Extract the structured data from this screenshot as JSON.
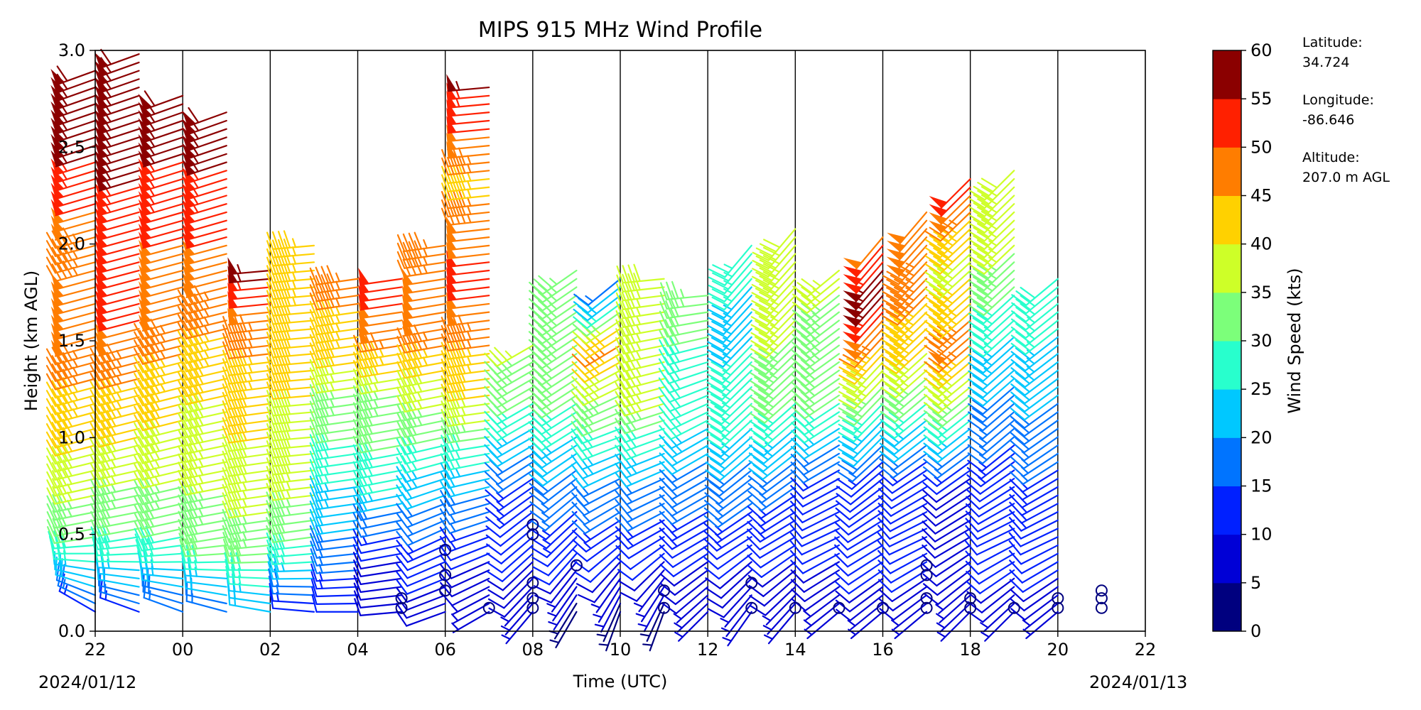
{
  "chart_data": {
    "type": "wind-barb-profile",
    "title": "MIPS 915 MHz Wind Profile",
    "xlabel": "Time (UTC)",
    "ylabel": "Height (km AGL)",
    "ylim": [
      0,
      3.0
    ],
    "xlim_hours": [
      22,
      46
    ],
    "y_ticks": [
      "0.0",
      "0.5",
      "1.0",
      "1.5",
      "2.0",
      "2.5",
      "3.0"
    ],
    "x_ticks": [
      "22",
      "00",
      "02",
      "04",
      "06",
      "08",
      "10",
      "12",
      "14",
      "16",
      "18",
      "20",
      "22"
    ],
    "date_start": "2024/01/12",
    "date_end": "2024/01/13",
    "grid": "vertical lines every 2 hours",
    "colorbar": {
      "label": "Wind Speed (kts)",
      "ticks": [
        "0",
        "5",
        "10",
        "15",
        "20",
        "25",
        "30",
        "35",
        "40",
        "45",
        "50",
        "55",
        "60"
      ],
      "colors": [
        "#00007f",
        "#0000d6",
        "#0020ff",
        "#0074ff",
        "#00c8ff",
        "#28ffcd",
        "#7cff7a",
        "#ceff28",
        "#ffd100",
        "#ff7d00",
        "#ff2000",
        "#8b0000"
      ]
    },
    "station": {
      "lat_label": "Latitude:",
      "lat": "34.724",
      "lon_label": "Longitude:",
      "lon": "-86.646",
      "alt_label": "Altitude:",
      "alt": "207.0 m AGL"
    },
    "profiles": [
      {
        "t": 22.0,
        "top": 2.9,
        "spd": [
          [
            0.1,
            14
          ],
          [
            0.4,
            28
          ],
          [
            0.8,
            38
          ],
          [
            1.2,
            44
          ],
          [
            1.6,
            50
          ],
          [
            2.0,
            46
          ],
          [
            2.3,
            52
          ],
          [
            2.6,
            58
          ],
          [
            2.9,
            60
          ]
        ],
        "dir": [
          [
            0.1,
            300
          ],
          [
            0.5,
            260
          ],
          [
            1.0,
            255
          ],
          [
            2.0,
            255
          ],
          [
            2.9,
            250
          ]
        ]
      },
      {
        "t": 23.0,
        "top": 3.0,
        "spd": [
          [
            0.1,
            14
          ],
          [
            0.4,
            28
          ],
          [
            0.8,
            36
          ],
          [
            1.2,
            44
          ],
          [
            1.6,
            50
          ],
          [
            2.0,
            50
          ],
          [
            2.4,
            56
          ],
          [
            2.8,
            60
          ]
        ],
        "dir": [
          [
            0.1,
            290
          ],
          [
            0.5,
            260
          ],
          [
            1.0,
            256
          ],
          [
            2.0,
            255
          ],
          [
            3.0,
            250
          ]
        ]
      },
      {
        "t": 24.0,
        "top": 2.8,
        "spd": [
          [
            0.1,
            16
          ],
          [
            0.4,
            28
          ],
          [
            0.8,
            36
          ],
          [
            1.2,
            42
          ],
          [
            1.6,
            48
          ],
          [
            2.0,
            50
          ],
          [
            2.3,
            54
          ],
          [
            2.8,
            58
          ]
        ],
        "dir": [
          [
            0.1,
            290
          ],
          [
            0.5,
            258
          ],
          [
            1.0,
            256
          ],
          [
            2.0,
            255
          ],
          [
            2.8,
            250
          ]
        ]
      },
      {
        "t": 25.0,
        "top": 2.7,
        "spd": [
          [
            0.1,
            16
          ],
          [
            0.4,
            30
          ],
          [
            0.8,
            36
          ],
          [
            1.2,
            40
          ],
          [
            1.6,
            46
          ],
          [
            2.0,
            50
          ],
          [
            2.3,
            54
          ],
          [
            2.7,
            58
          ]
        ],
        "dir": [
          [
            0.1,
            285
          ],
          [
            0.5,
            260
          ],
          [
            1.0,
            258
          ],
          [
            2.0,
            255
          ],
          [
            2.7,
            250
          ]
        ]
      },
      {
        "t": 26.0,
        "top": 1.9,
        "spd": [
          [
            0.1,
            20
          ],
          [
            0.4,
            32
          ],
          [
            0.8,
            38
          ],
          [
            1.2,
            42
          ],
          [
            1.6,
            48
          ],
          [
            1.9,
            58
          ]
        ],
        "dir": [
          [
            0.1,
            280
          ],
          [
            0.5,
            262
          ],
          [
            1.0,
            262
          ],
          [
            1.9,
            265
          ]
        ]
      },
      {
        "t": 27.0,
        "top": 2.0,
        "spd": [
          [
            0.1,
            10
          ],
          [
            0.4,
            28
          ],
          [
            0.8,
            38
          ],
          [
            1.2,
            40
          ],
          [
            1.6,
            42
          ],
          [
            2.0,
            45
          ]
        ],
        "dir": [
          [
            0.1,
            275
          ],
          [
            0.5,
            262
          ],
          [
            1.0,
            265
          ],
          [
            2.0,
            265
          ]
        ]
      },
      {
        "t": 28.0,
        "top": 1.85,
        "spd": [
          [
            0.1,
            10
          ],
          [
            0.4,
            18
          ],
          [
            0.8,
            26
          ],
          [
            1.2,
            34
          ],
          [
            1.5,
            44
          ],
          [
            1.85,
            46
          ]
        ],
        "dir": [
          [
            0.1,
            270
          ],
          [
            0.5,
            262
          ],
          [
            1.0,
            262
          ],
          [
            1.85,
            262
          ]
        ]
      },
      {
        "t": 29.0,
        "top": 1.85,
        "spd": [
          [
            0.1,
            8
          ],
          [
            0.4,
            10
          ],
          [
            0.8,
            28
          ],
          [
            1.2,
            34
          ],
          [
            1.5,
            48
          ],
          [
            1.85,
            52
          ]
        ],
        "dir": [
          [
            0.1,
            265
          ],
          [
            0.5,
            258
          ],
          [
            1.0,
            260
          ],
          [
            1.85,
            262
          ]
        ]
      },
      {
        "t": 30.0,
        "top": 2.0,
        "spd": [
          [
            0.1,
            8
          ],
          [
            0.4,
            12
          ],
          [
            0.8,
            24
          ],
          [
            1.2,
            36
          ],
          [
            1.6,
            50
          ],
          [
            2.0,
            46
          ]
        ],
        "dir": [
          [
            0.1,
            250
          ],
          [
            0.5,
            245
          ],
          [
            1.0,
            258
          ],
          [
            2.0,
            262
          ]
        ]
      },
      {
        "t": 31.0,
        "top": 2.85,
        "spd": [
          [
            0.1,
            6
          ],
          [
            0.4,
            10
          ],
          [
            0.8,
            22
          ],
          [
            1.2,
            40
          ],
          [
            1.8,
            52
          ],
          [
            2.3,
            44
          ],
          [
            2.85,
            56
          ]
        ],
        "dir": [
          [
            0.1,
            240
          ],
          [
            0.5,
            250
          ],
          [
            1.0,
            262
          ],
          [
            2.85,
            265
          ]
        ]
      },
      {
        "t": 32.0,
        "top": 1.5,
        "spd": [
          [
            0.1,
            6
          ],
          [
            0.4,
            10
          ],
          [
            0.8,
            14
          ],
          [
            1.2,
            30
          ],
          [
            1.5,
            36
          ]
        ],
        "dir": [
          [
            0.1,
            220
          ],
          [
            0.5,
            230
          ],
          [
            1.0,
            240
          ],
          [
            1.5,
            240
          ]
        ]
      },
      {
        "t": 33.0,
        "top": 1.9,
        "spd": [
          [
            0.1,
            4
          ],
          [
            0.4,
            10
          ],
          [
            0.8,
            18
          ],
          [
            1.2,
            30
          ],
          [
            1.6,
            34
          ],
          [
            1.9,
            34
          ]
        ],
        "dir": [
          [
            0.1,
            210
          ],
          [
            0.5,
            225
          ],
          [
            1.0,
            238
          ],
          [
            1.9,
            235
          ]
        ]
      },
      {
        "t": 34.0,
        "top": 1.85,
        "spd": [
          [
            0.1,
            4
          ],
          [
            0.4,
            10
          ],
          [
            0.8,
            20
          ],
          [
            1.2,
            34
          ],
          [
            1.5,
            46
          ],
          [
            1.85,
            14
          ]
        ],
        "dir": [
          [
            0.1,
            200
          ],
          [
            0.5,
            235
          ],
          [
            1.0,
            250
          ],
          [
            1.85,
            230
          ]
        ]
      },
      {
        "t": 35.0,
        "top": 1.85,
        "spd": [
          [
            0.1,
            4
          ],
          [
            0.4,
            10
          ],
          [
            0.8,
            20
          ],
          [
            1.2,
            36
          ],
          [
            1.6,
            36
          ],
          [
            1.85,
            40
          ]
        ],
        "dir": [
          [
            0.1,
            200
          ],
          [
            0.5,
            240
          ],
          [
            1.0,
            250
          ],
          [
            1.85,
            265
          ]
        ]
      },
      {
        "t": 36.0,
        "top": 1.75,
        "spd": [
          [
            0.1,
            6
          ],
          [
            0.4,
            10
          ],
          [
            0.8,
            18
          ],
          [
            1.2,
            28
          ],
          [
            1.5,
            30
          ],
          [
            1.75,
            34
          ]
        ],
        "dir": [
          [
            0.1,
            225
          ],
          [
            0.5,
            240
          ],
          [
            1.0,
            240
          ],
          [
            1.75,
            265
          ]
        ]
      },
      {
        "t": 37.0,
        "top": 2.0,
        "spd": [
          [
            0.1,
            6
          ],
          [
            0.4,
            10
          ],
          [
            0.8,
            18
          ],
          [
            1.2,
            28
          ],
          [
            1.6,
            24
          ],
          [
            2.0,
            26
          ]
        ],
        "dir": [
          [
            0.1,
            215
          ],
          [
            0.5,
            238
          ],
          [
            1.0,
            228
          ],
          [
            2.0,
            220
          ]
        ]
      },
      {
        "t": 38.0,
        "top": 2.1,
        "spd": [
          [
            0.1,
            6
          ],
          [
            0.4,
            10
          ],
          [
            0.8,
            16
          ],
          [
            1.2,
            30
          ],
          [
            1.6,
            36
          ],
          [
            2.1,
            40
          ]
        ],
        "dir": [
          [
            0.1,
            220
          ],
          [
            0.5,
            240
          ],
          [
            1.0,
            230
          ],
          [
            2.1,
            220
          ]
        ]
      },
      {
        "t": 39.0,
        "top": 1.9,
        "spd": [
          [
            0.1,
            6
          ],
          [
            0.4,
            10
          ],
          [
            0.8,
            12
          ],
          [
            1.2,
            30
          ],
          [
            1.6,
            34
          ],
          [
            1.9,
            36
          ]
        ],
        "dir": [
          [
            0.1,
            230
          ],
          [
            0.5,
            245
          ],
          [
            1.0,
            238
          ],
          [
            1.9,
            230
          ]
        ]
      },
      {
        "t": 40.0,
        "top": 2.05,
        "spd": [
          [
            0.1,
            6
          ],
          [
            0.3,
            10
          ],
          [
            0.8,
            10
          ],
          [
            1.2,
            30
          ],
          [
            1.5,
            45
          ],
          [
            1.8,
            58
          ],
          [
            2.05,
            48
          ]
        ],
        "dir": [
          [
            0.1,
            230
          ],
          [
            0.5,
            240
          ],
          [
            1.0,
            225
          ],
          [
            2.05,
            220
          ]
        ]
      },
      {
        "t": 41.0,
        "top": 2.2,
        "spd": [
          [
            0.1,
            6
          ],
          [
            0.3,
            10
          ],
          [
            0.8,
            10
          ],
          [
            1.2,
            30
          ],
          [
            1.5,
            42
          ],
          [
            1.8,
            46
          ],
          [
            2.2,
            50
          ]
        ],
        "dir": [
          [
            0.1,
            230
          ],
          [
            0.5,
            245
          ],
          [
            1.0,
            232
          ],
          [
            2.2,
            220
          ]
        ]
      },
      {
        "t": 42.0,
        "top": 2.35,
        "spd": [
          [
            0.1,
            6
          ],
          [
            0.3,
            8
          ],
          [
            0.8,
            10
          ],
          [
            1.2,
            32
          ],
          [
            1.5,
            48
          ],
          [
            1.9,
            38
          ],
          [
            2.35,
            52
          ]
        ],
        "dir": [
          [
            0.1,
            225
          ],
          [
            0.5,
            240
          ],
          [
            1.0,
            232
          ],
          [
            2.35,
            225
          ]
        ]
      },
      {
        "t": 43.0,
        "top": 2.4,
        "spd": [
          [
            0.1,
            6
          ],
          [
            0.3,
            10
          ],
          [
            0.8,
            12
          ],
          [
            1.2,
            18
          ],
          [
            1.6,
            26
          ],
          [
            2.0,
            36
          ],
          [
            2.4,
            40
          ]
        ],
        "dir": [
          [
            0.1,
            225
          ],
          [
            0.5,
            245
          ],
          [
            1.0,
            230
          ],
          [
            2.4,
            225
          ]
        ]
      },
      {
        "t": 44.0,
        "top": 1.85,
        "spd": [
          [
            0.1,
            6
          ],
          [
            0.3,
            10
          ],
          [
            0.8,
            14
          ],
          [
            1.2,
            20
          ],
          [
            1.5,
            24
          ],
          [
            1.85,
            30
          ]
        ],
        "dir": [
          [
            0.1,
            230
          ],
          [
            0.5,
            245
          ],
          [
            1.0,
            235
          ],
          [
            1.85,
            230
          ]
        ]
      }
    ],
    "calm_points": [
      [
        29,
        0.12
      ],
      [
        29,
        0.17
      ],
      [
        30,
        0.21
      ],
      [
        30,
        0.29
      ],
      [
        30,
        0.42
      ],
      [
        31,
        0.12
      ],
      [
        32,
        0.12
      ],
      [
        32,
        0.17
      ],
      [
        32,
        0.25
      ],
      [
        32,
        0.5
      ],
      [
        32,
        0.55
      ],
      [
        33,
        0.34
      ],
      [
        35,
        0.21
      ],
      [
        35,
        0.12
      ],
      [
        37,
        0.25
      ],
      [
        37,
        0.12
      ],
      [
        38,
        0.12
      ],
      [
        39,
        0.12
      ],
      [
        40,
        0.12
      ],
      [
        41,
        0.12
      ],
      [
        41,
        0.17
      ],
      [
        41,
        0.29
      ],
      [
        41,
        0.34
      ],
      [
        42,
        0.12
      ],
      [
        42,
        0.17
      ],
      [
        43,
        0.12
      ],
      [
        44,
        0.12
      ],
      [
        44,
        0.17
      ],
      [
        45,
        0.12
      ],
      [
        45,
        0.17
      ],
      [
        45,
        0.21
      ]
    ]
  }
}
